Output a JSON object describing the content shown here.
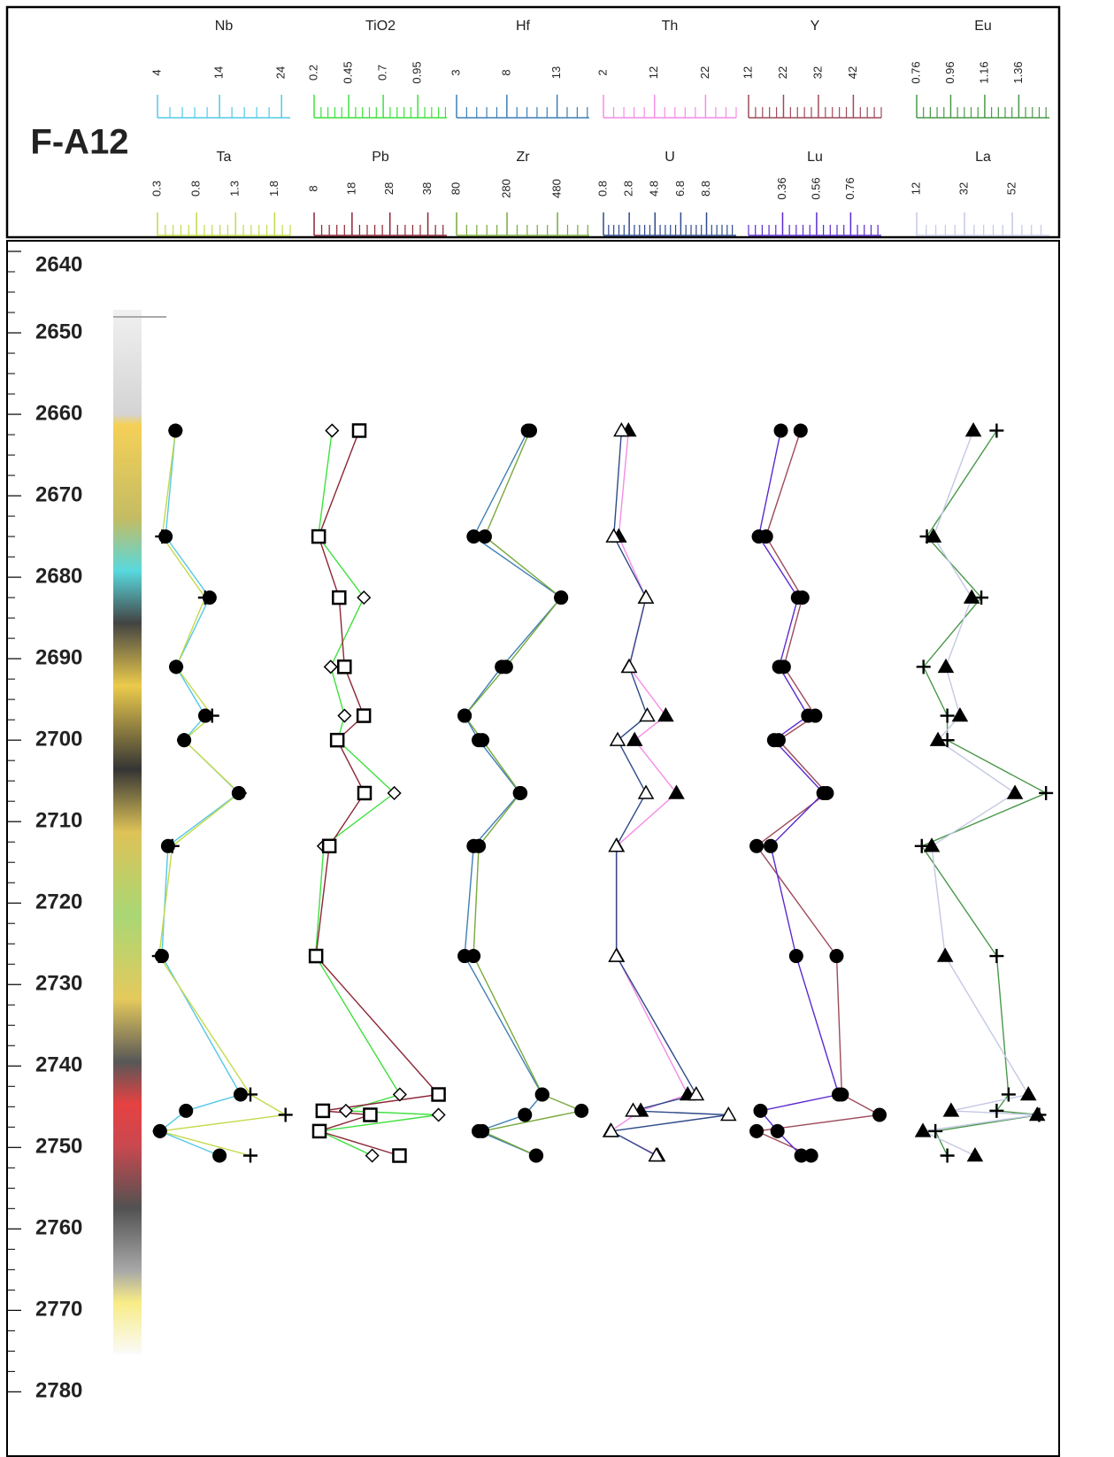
{
  "chart_data": {
    "type": "well-log",
    "title": "F-A12",
    "ylim": [
      2640,
      2788
    ],
    "invert_y": true,
    "yticks": [
      2640,
      2650,
      2660,
      2670,
      2680,
      2690,
      2700,
      2710,
      2720,
      2730,
      2740,
      2750,
      2760,
      2770,
      2780
    ],
    "tracks": [
      {
        "series": [
          {
            "name": "Nb",
            "color": "#55c8e6",
            "marker": "circle",
            "xlim": [
              4,
              25.4
            ],
            "xticks": [
              4,
              14,
              24
            ],
            "y": [
              2662,
              2675,
              2682.5,
              2691,
              2697,
              2700,
              2706.5,
              2713,
              2726.5,
              2743.5,
              2745.5,
              2748,
              2751
            ],
            "values": [
              6.9,
              5.3,
              12.4,
              7.0,
              11.7,
              8.3,
              17.1,
              5.7,
              4.7,
              17.4,
              8.6,
              4.4,
              14.0
            ]
          },
          {
            "name": "Ta",
            "color": "#c5d94a",
            "marker": "plus",
            "xlim": [
              0.3,
              2.0
            ],
            "xticks": [
              0.3,
              0.8,
              1.3,
              1.8
            ],
            "y": [
              2662,
              2675,
              2682.5,
              2691,
              2697,
              2700,
              2706.5,
              2713,
              2726.5,
              2743.5,
              2746,
              2748,
              2751
            ],
            "values": [
              0.53,
              0.36,
              0.91,
              0.54,
              1.0,
              0.64,
              1.35,
              0.49,
              0.32,
              1.49,
              1.94,
              0.33,
              1.49
            ]
          }
        ]
      },
      {
        "series": [
          {
            "name": "TiO2",
            "color": "#3fe03f",
            "marker": "diamond",
            "xlim": [
              0.2,
              1.16
            ],
            "xticks": [
              0.2,
              0.45,
              0.7,
              0.95
            ],
            "y": [
              2662,
              2675,
              2682.5,
              2691,
              2697,
              2700,
              2706.5,
              2713,
              2726.5,
              2743.5,
              2745.5,
              2746,
              2748,
              2751
            ],
            "values": [
              0.33,
              0.23,
              0.56,
              0.32,
              0.42,
              0.37,
              0.78,
              0.27,
              0.21,
              0.82,
              0.43,
              1.1,
              0.24,
              0.62
            ]
          },
          {
            "name": "Pb",
            "color": "#8b2535",
            "marker": "square",
            "xlim": [
              8,
              43
            ],
            "xticks": [
              8,
              18,
              28,
              38
            ],
            "y": [
              2662,
              2675,
              2682.5,
              2691,
              2697,
              2700,
              2706.5,
              2713,
              2726.5,
              2743.5,
              2745.5,
              2746,
              2748,
              2751
            ],
            "values": [
              19.9,
              9.2,
              14.6,
              16.0,
              21.1,
              14.1,
              21.3,
              12.0,
              8.5,
              40.8,
              10.3,
              22.8,
              9.4,
              30.5
            ]
          }
        ]
      },
      {
        "series": [
          {
            "name": "Hf",
            "color": "#3f7fb5",
            "marker": "circle",
            "xlim": [
              3,
              16.2
            ],
            "xticks": [
              3,
              8,
              13
            ],
            "y": [
              2662,
              2675,
              2682.5,
              2691,
              2697,
              2700,
              2706.5,
              2713,
              2726.5,
              2743.5,
              2746,
              2748,
              2751
            ],
            "values": [
              10.1,
              4.7,
              13.4,
              7.5,
              3.8,
              5.2,
              9.3,
              4.7,
              3.8,
              11.5,
              9.8,
              5.2,
              10.9
            ]
          },
          {
            "name": "Zr",
            "color": "#78a83c",
            "marker": "circle",
            "xlim": [
              80,
              606
            ],
            "xticks": [
              80,
              280,
              480
            ],
            "y": [
              2662,
              2675,
              2682.5,
              2691,
              2697,
              2700,
              2706.5,
              2713,
              2726.5,
              2743.5,
              2745.5,
              2748,
              2751
            ],
            "values": [
              371,
              192,
              494,
              276,
              112,
              182,
              333,
              168,
              147,
              420,
              575,
              182,
              396
            ]
          }
        ]
      },
      {
        "series": [
          {
            "name": "Th",
            "color": "#f58ce6",
            "marker": "triangle",
            "xlim": [
              2,
              28
            ],
            "xticks": [
              2,
              12,
              22
            ],
            "y": [
              2662,
              2675,
              2682.5,
              2691,
              2697,
              2700,
              2706.5,
              2713,
              2726.5,
              2743.5,
              2745.5,
              2748,
              2751
            ],
            "values": [
              6.9,
              5.0,
              10.3,
              7.0,
              14.2,
              8.1,
              16.3,
              4.6,
              4.6,
              18.5,
              9.3,
              3.4,
              12.6
            ]
          },
          {
            "name": "U",
            "color": "#2f4a8a",
            "marker": "triangle-open",
            "xlim": [
              0.8,
              11.1
            ],
            "xticks": [
              0.8,
              2.8,
              4.8,
              6.8,
              8.8
            ],
            "y": [
              2662,
              2675,
              2682.5,
              2691,
              2697,
              2700,
              2706.5,
              2713,
              2726.5,
              2743.5,
              2745.5,
              2746,
              2748,
              2751
            ],
            "values": [
              2.2,
              1.6,
              4.1,
              2.8,
              4.2,
              1.9,
              4.1,
              1.8,
              1.8,
              8.0,
              3.1,
              10.5,
              1.4,
              4.9
            ]
          }
        ]
      },
      {
        "series": [
          {
            "name": "Y",
            "color": "#9e4a5a",
            "marker": "circle",
            "xlim": [
              12,
              50
            ],
            "xticks": [
              12,
              22,
              32,
              42
            ],
            "y": [
              2662,
              2675,
              2682.5,
              2691,
              2697,
              2700,
              2706.5,
              2713,
              2726.5,
              2743.5,
              2746,
              2748,
              2751
            ],
            "values": [
              26.9,
              17.0,
              27.4,
              22.1,
              31.1,
              20.6,
              34.4,
              14.3,
              37.2,
              38.7,
              49.5,
              14.3,
              29.9
            ]
          },
          {
            "name": "Lu",
            "color": "#5a2ad0",
            "marker": "circle",
            "xlim": [
              0.16,
              0.94
            ],
            "xticks": [
              0.36,
              0.56,
              0.76
            ],
            "y": [
              2662,
              2675,
              2682.5,
              2691,
              2697,
              2700,
              2706.5,
              2713,
              2726.5,
              2743.5,
              2745.5,
              2748,
              2751
            ],
            "values": [
              0.35,
              0.22,
              0.45,
              0.34,
              0.51,
              0.31,
              0.6,
              0.29,
              0.44,
              0.69,
              0.23,
              0.33,
              0.47
            ]
          }
        ]
      },
      {
        "series": [
          {
            "name": "Eu",
            "color": "#4a984a",
            "marker": "plus",
            "xlim": [
              0.76,
              1.54
            ],
            "xticks": [
              0.76,
              0.96,
              1.16,
              1.36
            ],
            "y": [
              2662,
              2675,
              2682.5,
              2691,
              2697,
              2700,
              2706.5,
              2713,
              2726.5,
              2743.5,
              2745.5,
              2746,
              2748,
              2751
            ],
            "values": [
              1.23,
              0.82,
              1.14,
              0.8,
              0.94,
              0.94,
              1.52,
              0.79,
              1.23,
              1.3,
              1.23,
              1.48,
              0.87,
              0.94
            ]
          },
          {
            "name": "La",
            "color": "#c4c8e4",
            "marker": "triangle",
            "xlim": [
              12,
              67.5
            ],
            "xticks": [
              12,
              32,
              52
            ],
            "y": [
              2662,
              2675,
              2682.5,
              2691,
              2697,
              2700,
              2706.5,
              2713,
              2726.5,
              2743.5,
              2745.5,
              2746,
              2748,
              2751
            ],
            "values": [
              35.7,
              19.0,
              35.0,
              24.2,
              30.1,
              20.9,
              53.1,
              18.3,
              23.9,
              58.7,
              26.4,
              62.4,
              14.6,
              36.4
            ]
          }
        ]
      }
    ]
  }
}
